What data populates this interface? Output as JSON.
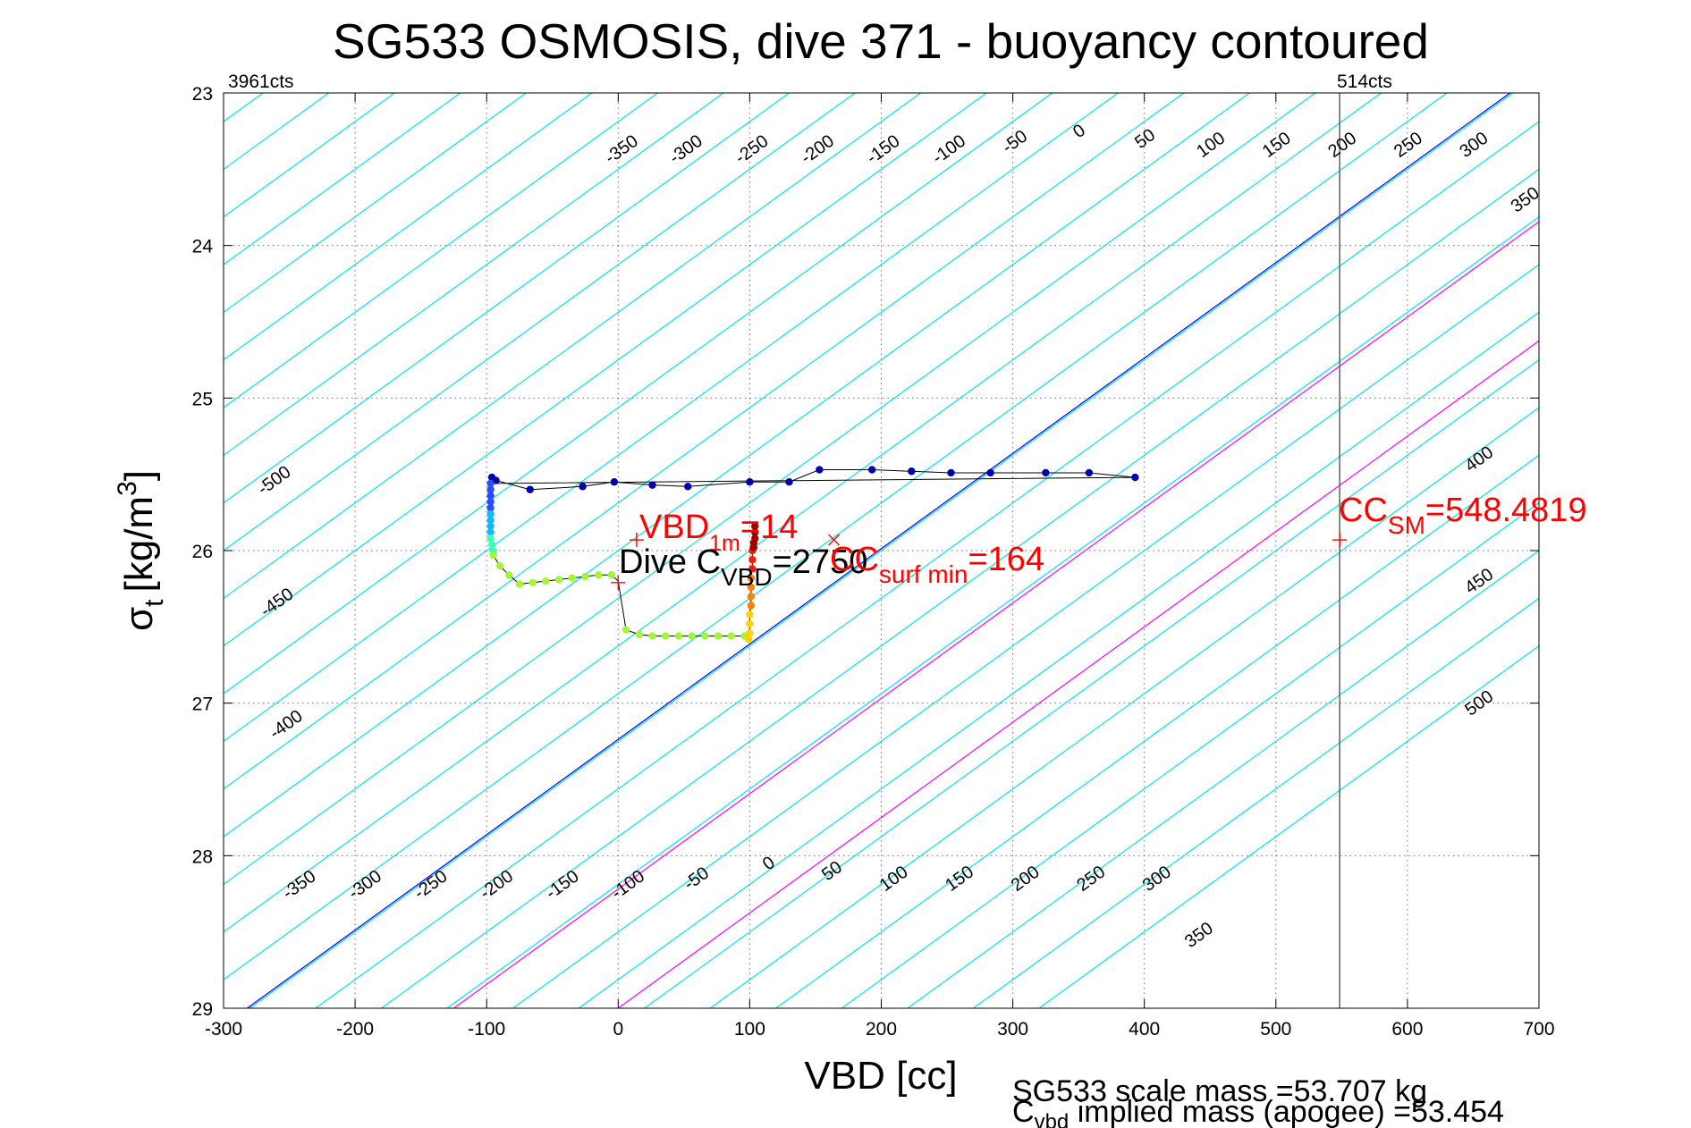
{
  "colors": {
    "isoline": "#00e6e6",
    "zero_line": "#0000ff",
    "magenta_line": "#ff00ff",
    "cc_line": "#555555",
    "annotation_red": "#ff0000",
    "trace_line": "#000000"
  },
  "chart_data": {
    "type": "scatter",
    "title": "SG533 OSMOSIS, dive 371 - buoyancy contoured",
    "xlabel": "VBD [cc]",
    "ylabel_main": "σ",
    "ylabel_sub": "t",
    "ylabel_unit": "[kg/m",
    "ylabel_sup": "3",
    "ylabel_close": "]",
    "xlim": [
      -300,
      700
    ],
    "ylim": [
      29,
      23
    ],
    "y_reversed": true,
    "grid": true,
    "xticks": [
      -300,
      -200,
      -100,
      0,
      100,
      200,
      300,
      400,
      500,
      600,
      700
    ],
    "xtick_labels": [
      "-300",
      "-200",
      "-100",
      "0",
      "100",
      "200",
      "300",
      "400",
      "500",
      "600",
      "700"
    ],
    "yticks": [
      23,
      24,
      25,
      26,
      27,
      28,
      29
    ],
    "ytick_labels": [
      "23",
      "24",
      "25",
      "26",
      "27",
      "28",
      "29"
    ],
    "counts_left": "3961cts",
    "counts_right": "514cts",
    "isolines": {
      "vbd_at_sigma26": [
        -950,
        -900,
        -850,
        -800,
        -750,
        -700,
        -650,
        -600,
        -550,
        -500,
        -450,
        -400,
        -350,
        -300,
        -250,
        -200,
        -150,
        -100,
        -50,
        0,
        50,
        100,
        150,
        200,
        250,
        300,
        350,
        400,
        450,
        500,
        550,
        600,
        650,
        700,
        750,
        800
      ],
      "slope_vbd_per_sigma": -160,
      "zero_line_vbd_at_sigma26": 198,
      "magenta_lines_vbd_at_sigma26": [
        355,
        480
      ]
    },
    "isoline_labels": [
      {
        "text": "-350",
        "x": 5,
        "y": 23.4
      },
      {
        "text": "-300",
        "x": 54,
        "y": 23.4
      },
      {
        "text": "-250",
        "x": 104,
        "y": 23.4
      },
      {
        "text": "-200",
        "x": 154,
        "y": 23.4
      },
      {
        "text": "-150",
        "x": 204,
        "y": 23.4
      },
      {
        "text": "-100",
        "x": 254,
        "y": 23.4
      },
      {
        "text": "-50",
        "x": 304,
        "y": 23.35
      },
      {
        "text": "0",
        "x": 353,
        "y": 23.28
      },
      {
        "text": "50",
        "x": 403,
        "y": 23.33
      },
      {
        "text": "100",
        "x": 453,
        "y": 23.37
      },
      {
        "text": "150",
        "x": 503,
        "y": 23.37
      },
      {
        "text": "200",
        "x": 553,
        "y": 23.37
      },
      {
        "text": "250",
        "x": 603,
        "y": 23.37
      },
      {
        "text": "300",
        "x": 653,
        "y": 23.37
      },
      {
        "text": "350",
        "x": 692,
        "y": 23.73
      },
      {
        "text": "-500",
        "x": -259,
        "y": 25.57
      },
      {
        "text": "-450",
        "x": -257,
        "y": 26.37
      },
      {
        "text": "-400",
        "x": -250,
        "y": 27.17
      },
      {
        "text": "400",
        "x": 657,
        "y": 25.43
      },
      {
        "text": "450",
        "x": 657,
        "y": 26.23
      },
      {
        "text": "500",
        "x": 657,
        "y": 27.03
      },
      {
        "text": "-350",
        "x": -240,
        "y": 28.22
      },
      {
        "text": "-300",
        "x": -190,
        "y": 28.22
      },
      {
        "text": "-250",
        "x": -140,
        "y": 28.22
      },
      {
        "text": "-200",
        "x": -90,
        "y": 28.22
      },
      {
        "text": "-150",
        "x": -40,
        "y": 28.22
      },
      {
        "text": "-100",
        "x": 10,
        "y": 28.22
      },
      {
        "text": "-50",
        "x": 62,
        "y": 28.18
      },
      {
        "text": "0",
        "x": 117,
        "y": 28.08
      },
      {
        "text": "50",
        "x": 165,
        "y": 28.13
      },
      {
        "text": "100",
        "x": 212,
        "y": 28.18
      },
      {
        "text": "150",
        "x": 262,
        "y": 28.18
      },
      {
        "text": "200",
        "x": 312,
        "y": 28.18
      },
      {
        "text": "250",
        "x": 362,
        "y": 28.18
      },
      {
        "text": "300",
        "x": 412,
        "y": 28.18
      },
      {
        "text": "350",
        "x": 444,
        "y": 28.55
      }
    ],
    "cc_sm_vbd": 548.4819,
    "series": [
      {
        "marker_color": "#0000aa",
        "x": [
          -96,
          -93,
          -67,
          -27,
          -3,
          26,
          53,
          100,
          130,
          153,
          193,
          223,
          253,
          283,
          325,
          358,
          393
        ],
        "y": [
          25.52,
          25.54,
          25.6,
          25.58,
          25.55,
          25.57,
          25.58,
          25.55,
          25.55,
          25.47,
          25.47,
          25.48,
          25.49,
          25.49,
          25.49,
          25.49,
          25.52
        ]
      },
      {
        "marker_color": "#2a4cff",
        "x": [
          -97,
          -97,
          -97,
          -97,
          -97
        ],
        "y": [
          25.56,
          25.6,
          25.64,
          25.68,
          25.72
        ]
      },
      {
        "marker_color": "#13b9ff",
        "x": [
          -97,
          -97,
          -97,
          -97
        ],
        "y": [
          25.76,
          25.8,
          25.84,
          25.88
        ]
      },
      {
        "marker_color": "#3effb8",
        "x": [
          -97,
          -96,
          -95
        ],
        "y": [
          25.92,
          25.96,
          26.0
        ]
      },
      {
        "marker_color": "#a4f43b",
        "x": [
          -95,
          -90,
          -83,
          -75,
          -65,
          -55,
          -45,
          -35,
          -25,
          -15,
          -5
        ],
        "y": [
          26.03,
          26.1,
          26.16,
          26.22,
          26.21,
          26.2,
          26.19,
          26.18,
          26.17,
          26.16,
          26.16
        ]
      },
      {
        "marker_color": "#a4f43b",
        "x": [
          6,
          16,
          26,
          36,
          46,
          56,
          66,
          76,
          86,
          96
        ],
        "y": [
          26.52,
          26.55,
          26.56,
          26.56,
          26.56,
          26.56,
          26.56,
          26.56,
          26.56,
          26.56
        ]
      },
      {
        "marker_color": "#ffd200",
        "x": [
          99,
          100,
          100,
          100
        ],
        "y": [
          26.58,
          26.54,
          26.48,
          26.42
        ]
      },
      {
        "marker_color": "#ff7f00",
        "x": [
          101,
          101,
          101,
          101
        ],
        "y": [
          26.36,
          26.3,
          26.24,
          26.18
        ]
      },
      {
        "marker_color": "#ff1a00",
        "x": [
          102,
          102,
          102
        ],
        "y": [
          26.12,
          26.06,
          26.0
        ]
      },
      {
        "marker_color": "#a00000",
        "x": [
          103,
          103,
          104,
          104,
          104
        ],
        "y": [
          25.98,
          25.95,
          25.92,
          25.88,
          25.84
        ]
      }
    ],
    "trace_gap": {
      "x": [
        -5,
        0,
        6
      ],
      "y": [
        26.16,
        26.2,
        26.52
      ]
    },
    "annotations": {
      "vbd_1m": {
        "pre": "VBD",
        "sub": "1m",
        "post": "=14",
        "marker_x": 14,
        "marker_y": 25.93
      },
      "cc_surf_min": {
        "pre": "CC",
        "sub": "surf min",
        "post": "=164",
        "marker_x": 164,
        "marker_y": 25.93
      },
      "dive_c_vbd": {
        "pre": "Dive C",
        "sub": "VBD",
        "post": "=2750",
        "marker_x": 0,
        "marker_y": 26.21
      },
      "cc_sm": {
        "pre": "CC",
        "sub": "SM",
        "post": "=548.4819",
        "marker_x": 548.4819,
        "marker_y": 25.93
      }
    },
    "footer": {
      "scale_mass": "SG533 scale mass =53.707 kg",
      "implied_pre": "C",
      "implied_sub": "vbd",
      "implied_post": " implied mass (apogee) =53.454"
    }
  }
}
